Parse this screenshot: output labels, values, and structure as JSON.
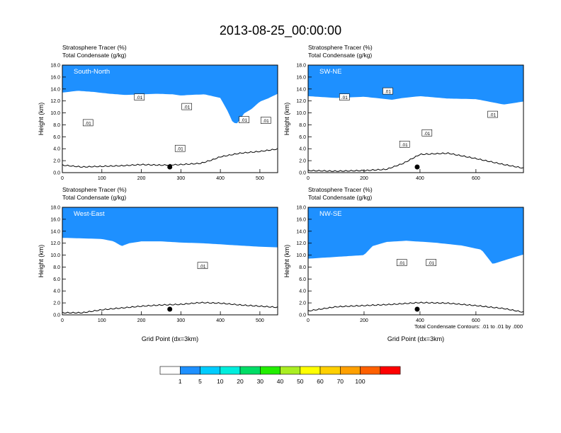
{
  "figure": {
    "title": "2013-08-25_00:00:00",
    "footnote": "Total Condensate Contours: .01 to .01 by .000"
  },
  "colorbar": {
    "colors": [
      "#ffffff",
      "#1e90ff",
      "#00ccff",
      "#00eedd",
      "#00dd66",
      "#22ee00",
      "#aaee22",
      "#ffff00",
      "#ffd000",
      "#ffa000",
      "#ff6000",
      "#ff0000"
    ],
    "labels": [
      "1",
      "5",
      "10",
      "20",
      "30",
      "40",
      "50",
      "60",
      "70",
      "100"
    ]
  },
  "chart_data": [
    {
      "type": "contour",
      "panel": "South-North",
      "title_line1": "Stratosphere Tracer   (%)",
      "title_line2": "Total Condensate   (g/kg)",
      "ylabel": "Height (km)",
      "xlabel": "",
      "xlim": [
        0,
        545
      ],
      "ylim": [
        0,
        18
      ],
      "xticks": [
        "0",
        "100",
        "200",
        "300",
        "400",
        "500"
      ],
      "xtick_values": [
        0,
        100,
        200,
        300,
        400,
        500
      ],
      "yticks": [
        "0.0",
        "2.0",
        "4.0",
        "6.0",
        "8.0",
        "10.0",
        "12.0",
        "14.0",
        "16.0",
        "18.0"
      ],
      "tropopause_x": [
        0,
        40,
        80,
        120,
        160,
        200,
        240,
        280,
        300,
        320,
        360,
        400,
        410,
        420,
        430,
        440,
        450,
        460,
        480,
        500,
        520,
        545
      ],
      "tropopause_km": [
        14.1,
        14.4,
        14.2,
        13.9,
        13.7,
        13.8,
        13.9,
        13.8,
        13.6,
        13.7,
        13.8,
        13.2,
        12.0,
        10.8,
        9.3,
        8.8,
        9.6,
        10.6,
        11.4,
        12.6,
        13.1,
        13.9
      ],
      "terrain_x": [
        0,
        50,
        100,
        150,
        200,
        250,
        300,
        350,
        380,
        400,
        450,
        500,
        545
      ],
      "terrain_km": [
        1.2,
        0.9,
        1.0,
        1.1,
        1.3,
        1.2,
        1.3,
        1.5,
        2.1,
        2.6,
        3.2,
        3.5,
        3.9
      ],
      "marker_x": 272,
      "contour_labels": [
        ".01",
        ".01",
        ".01",
        ".01",
        ".01",
        ".01"
      ],
      "label_positions": [
        [
          195,
          12.6
        ],
        [
          65,
          8.3
        ],
        [
          298,
          4.0
        ],
        [
          315,
          11.0
        ],
        [
          460,
          8.8
        ],
        [
          515,
          8.7
        ]
      ]
    },
    {
      "type": "contour",
      "panel": "SW-NE",
      "title_line1": "Stratosphere Tracer   (%)",
      "title_line2": "Total Condensate   (g/kg)",
      "ylabel": "Height (km)",
      "xlabel": "",
      "xlim": [
        0,
        770
      ],
      "ylim": [
        0,
        18
      ],
      "xticks": [
        "0",
        "200",
        "400",
        "600"
      ],
      "xtick_values": [
        0,
        200,
        400,
        600
      ],
      "yticks": [
        "0.0",
        "2.0",
        "4.0",
        "6.0",
        "8.0",
        "10.0",
        "12.0",
        "14.0",
        "16.0",
        "18.0"
      ],
      "tropopause_x": [
        0,
        100,
        200,
        260,
        300,
        340,
        400,
        500,
        600,
        700,
        770
      ],
      "tropopause_km": [
        13.5,
        13.2,
        13.4,
        13.1,
        12.9,
        13.2,
        13.5,
        13.1,
        13.0,
        12.1,
        12.6
      ],
      "terrain_x": [
        0,
        100,
        200,
        280,
        340,
        400,
        500,
        600,
        700,
        770
      ],
      "terrain_km": [
        0.3,
        0.2,
        0.3,
        0.5,
        1.5,
        3.0,
        3.2,
        2.3,
        1.3,
        0.7
      ],
      "marker_x": 390,
      "contour_labels": [
        ".01",
        ".01",
        ".01",
        ".01",
        ".01"
      ],
      "label_positions": [
        [
          130,
          12.6
        ],
        [
          285,
          13.6
        ],
        [
          345,
          4.7
        ],
        [
          425,
          6.6
        ],
        [
          660,
          9.7
        ]
      ]
    },
    {
      "type": "contour",
      "panel": "West-East",
      "title_line1": "Stratosphere Tracer   (%)",
      "title_line2": "Total Condensate   (g/kg)",
      "ylabel": "Height (km)",
      "xlabel": "Grid Point (dx=3km)",
      "xlim": [
        0,
        545
      ],
      "ylim": [
        0,
        18
      ],
      "xticks": [
        "0",
        "100",
        "200",
        "300",
        "400",
        "500"
      ],
      "xtick_values": [
        0,
        100,
        200,
        300,
        400,
        500
      ],
      "yticks": [
        "0.0",
        "2.0",
        "4.0",
        "6.0",
        "8.0",
        "10.0",
        "12.0",
        "14.0",
        "16.0",
        "18.0"
      ],
      "tropopause_x": [
        0,
        100,
        130,
        150,
        170,
        200,
        250,
        300,
        350,
        400,
        450,
        500,
        545
      ],
      "tropopause_km": [
        13.6,
        13.4,
        13.0,
        12.2,
        12.7,
        13.0,
        13.0,
        12.8,
        12.7,
        12.5,
        12.3,
        12.1,
        12.0
      ],
      "terrain_x": [
        0,
        50,
        100,
        150,
        200,
        250,
        300,
        350,
        400,
        450,
        500,
        545
      ],
      "terrain_km": [
        0.3,
        0.3,
        0.8,
        1.1,
        1.4,
        1.6,
        1.7,
        2.0,
        1.9,
        1.6,
        1.4,
        1.2
      ],
      "marker_x": 272,
      "contour_labels": [
        ".01"
      ],
      "label_positions": [
        [
          355,
          8.2
        ]
      ]
    },
    {
      "type": "contour",
      "panel": "NW-SE",
      "title_line1": "Stratosphere Tracer   (%)",
      "title_line2": "Total Condensate   (g/kg)",
      "ylabel": "Height (km)",
      "xlabel": "Grid Point (dx=3km)",
      "xlim": [
        0,
        770
      ],
      "ylim": [
        0,
        18
      ],
      "xticks": [
        "0",
        "200",
        "400",
        "600"
      ],
      "xtick_values": [
        0,
        200,
        400,
        600
      ],
      "yticks": [
        "0.0",
        "2.0",
        "4.0",
        "6.0",
        "8.0",
        "10.0",
        "12.0",
        "14.0",
        "16.0",
        "18.0"
      ],
      "tropopause_x": [
        0,
        100,
        200,
        230,
        280,
        350,
        450,
        550,
        620,
        660,
        700,
        770
      ],
      "tropopause_km": [
        10.1,
        10.4,
        10.7,
        12.2,
        12.9,
        13.1,
        12.8,
        12.3,
        11.6,
        9.2,
        9.8,
        10.8
      ],
      "terrain_x": [
        0,
        100,
        200,
        300,
        400,
        500,
        600,
        700,
        770
      ],
      "terrain_km": [
        0.6,
        1.3,
        1.5,
        1.7,
        2.0,
        1.9,
        1.5,
        1.0,
        0.4
      ],
      "marker_x": 390,
      "contour_labels": [
        ".01",
        ".01"
      ],
      "label_positions": [
        [
          335,
          8.7
        ],
        [
          440,
          8.7
        ]
      ]
    }
  ]
}
